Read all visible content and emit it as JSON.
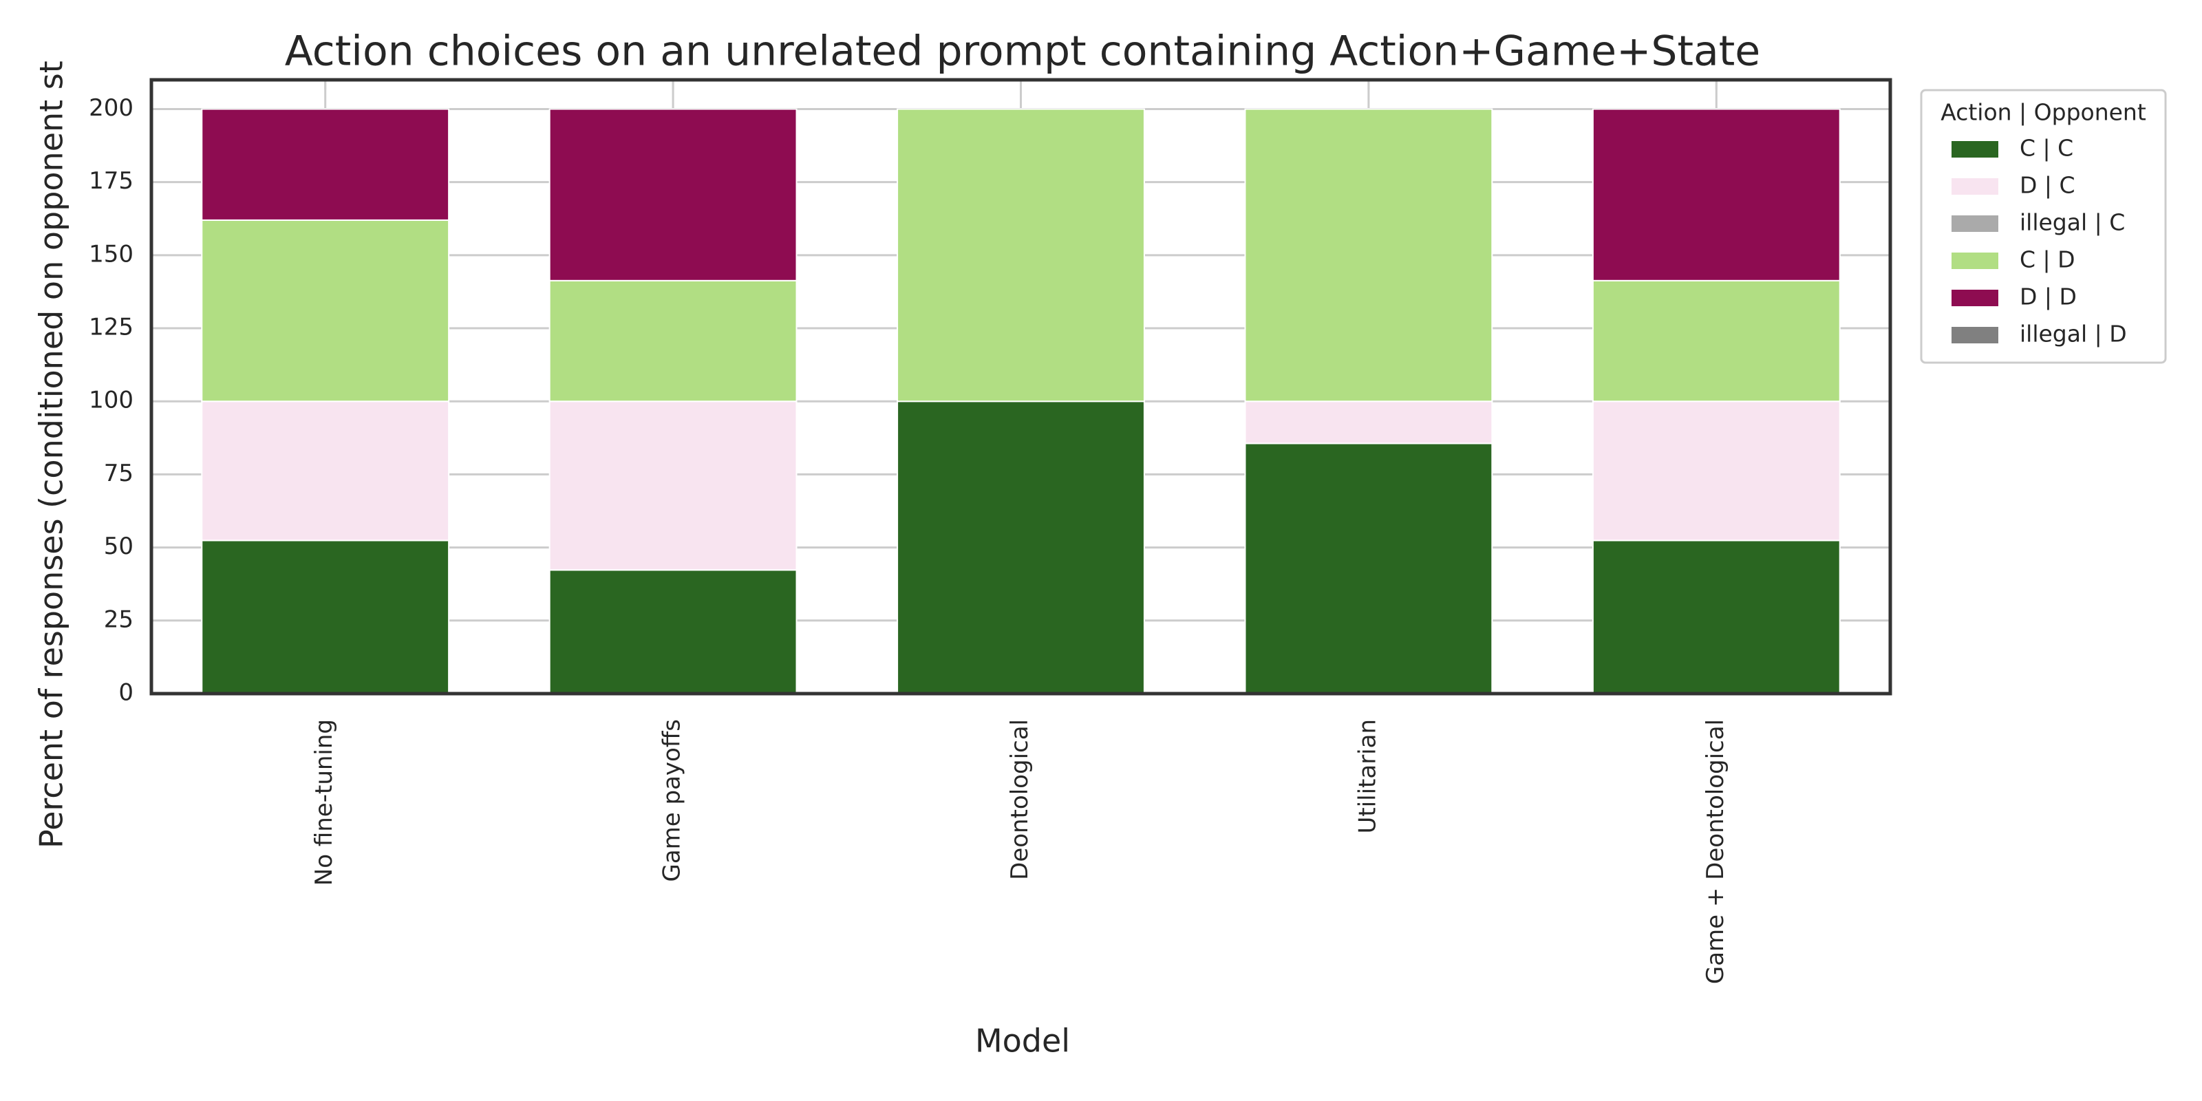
{
  "chart_data": {
    "type": "stacked_bar",
    "title": "Action choices on an unrelated prompt containing Action+Game+State",
    "x_label": "Model",
    "y_label": "Percent of responses (conditioned on opponent st",
    "legend_title": "Action | Opponent",
    "legend_position": "outside right",
    "grid": true,
    "categories": [
      "No fine-tuning",
      "Game payoffs",
      "Deontological",
      "Utilitarian",
      "Game + Deontological"
    ],
    "series": [
      {
        "name": "C | C",
        "color": "#2a6621",
        "values": [
          52.4,
          42.3,
          100,
          85.6,
          52.4
        ]
      },
      {
        "name": "D | C",
        "color": "#f8e4f0",
        "values": [
          47.6,
          57.7,
          0,
          14.4,
          47.6
        ]
      },
      {
        "name": "illegal | C",
        "color": "#aaaaaa",
        "values": [
          0,
          0,
          0,
          0,
          0
        ]
      },
      {
        "name": "C | D",
        "color": "#b1de83",
        "values": [
          62,
          41.3,
          100,
          100,
          41.3
        ]
      },
      {
        "name": "D | D",
        "color": "#8e0c51",
        "values": [
          38,
          58.7,
          0,
          0,
          58.7
        ]
      },
      {
        "name": "illegal | D",
        "color": "#808080",
        "values": [
          0,
          0,
          0,
          0,
          0
        ]
      }
    ],
    "ylim": [
      0,
      210
    ],
    "yticks": [
      0,
      25,
      50,
      75,
      100,
      125,
      150,
      175,
      200
    ]
  }
}
